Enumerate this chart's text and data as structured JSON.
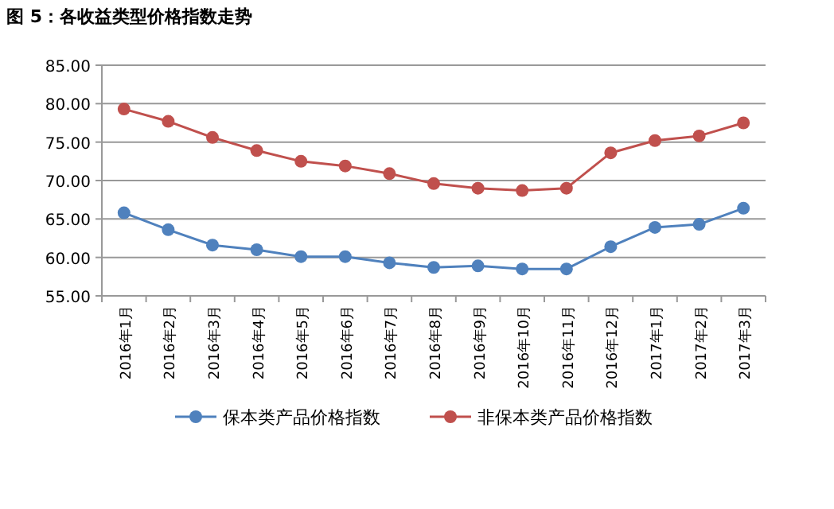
{
  "chart_data": {
    "type": "line",
    "title": "图 5：各收益类型价格指数走势",
    "categories": [
      "2016年1月",
      "2016年2月",
      "2016年3月",
      "2016年4月",
      "2016年5月",
      "2016年6月",
      "2016年7月",
      "2016年8月",
      "2016年9月",
      "2016年10月",
      "2016年11月",
      "2016年12月",
      "2017年1月",
      "2017年2月",
      "2017年3月"
    ],
    "series": [
      {
        "name": "保本类产品价格指数",
        "color": "#4f81bd",
        "values": [
          65.8,
          63.6,
          61.6,
          61.0,
          60.1,
          60.1,
          59.3,
          58.7,
          58.9,
          58.5,
          58.5,
          61.4,
          63.9,
          64.3,
          66.4
        ]
      },
      {
        "name": "非保本类产品价格指数",
        "color": "#c0504d",
        "values": [
          79.3,
          77.7,
          75.6,
          73.9,
          72.5,
          71.9,
          70.9,
          69.6,
          69.0,
          68.7,
          69.0,
          73.6,
          75.2,
          75.8,
          77.5
        ]
      }
    ],
    "ylim": [
      55,
      85
    ],
    "yticks": [
      {
        "value": 55,
        "label": "55.00"
      },
      {
        "value": 60,
        "label": "60.00"
      },
      {
        "value": 65,
        "label": "65.00"
      },
      {
        "value": 70,
        "label": "70.00"
      },
      {
        "value": 75,
        "label": "75.00"
      },
      {
        "value": 80,
        "label": "80.00"
      },
      {
        "value": 85,
        "label": "85.00"
      }
    ],
    "grid": "y",
    "legend": "bottom",
    "marker": "circle",
    "line_style": "solid"
  }
}
